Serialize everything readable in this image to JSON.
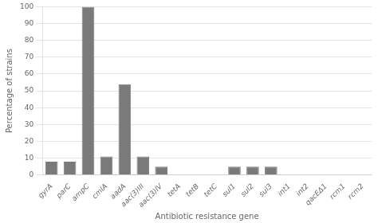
{
  "chart_data": {
    "type": "bar",
    "categories": [
      "gyrA",
      "parC",
      "ampC",
      "cmlA",
      "aadA",
      "aac(3)III",
      "aac(3)IV",
      "tetA",
      "tetB",
      "tetC",
      "sul1",
      "sul2",
      "sul3",
      "int1",
      "int2",
      "qacEΔ1",
      "rcm1",
      "rcm2"
    ],
    "values": [
      8,
      8,
      100,
      11,
      54,
      11,
      5,
      0,
      0,
      0,
      5,
      5,
      5,
      0,
      0,
      0,
      0,
      0
    ],
    "color": "#7a7a7a",
    "xlabel": "Antibiotic resistance gene",
    "ylabel": "Percentage of strains",
    "ylim": [
      0,
      100
    ],
    "yticks": [
      0,
      10,
      20,
      30,
      40,
      50,
      60,
      70,
      80,
      90,
      100
    ],
    "grid": true
  }
}
